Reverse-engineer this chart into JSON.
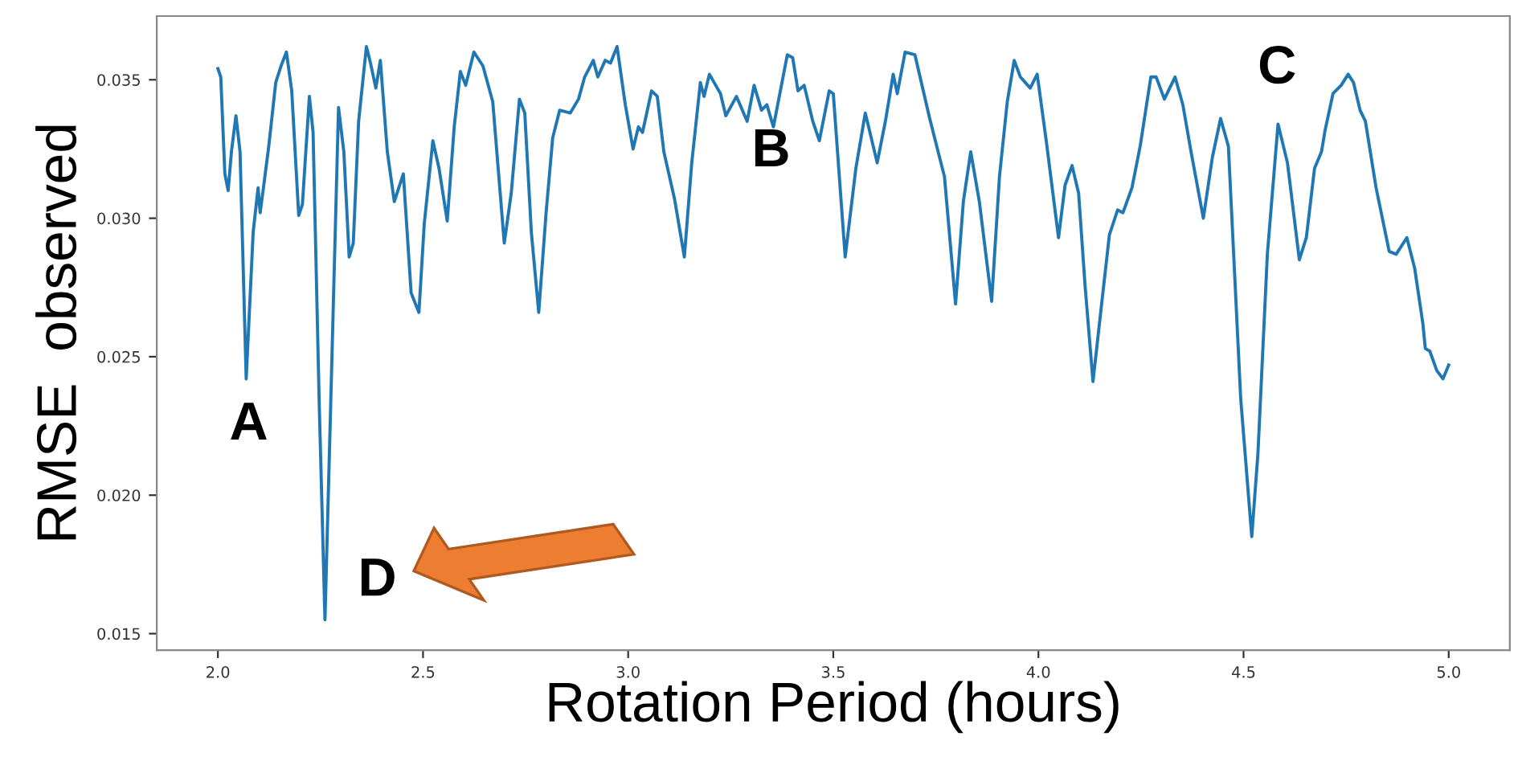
{
  "chart_data": {
    "type": "line",
    "xlabel": "Rotation Period (hours)",
    "ylabel": "RMSE  observed",
    "xlim": [
      1.851,
      5.149
    ],
    "ylim": [
      0.0144,
      0.0373
    ],
    "xticks": [
      {
        "value": 2.0,
        "label": "2.0"
      },
      {
        "value": 2.5,
        "label": "2.5"
      },
      {
        "value": 3.0,
        "label": "3.0"
      },
      {
        "value": 3.5,
        "label": "3.5"
      },
      {
        "value": 4.0,
        "label": "4.0"
      },
      {
        "value": 4.5,
        "label": "4.5"
      },
      {
        "value": 5.0,
        "label": "5.0"
      }
    ],
    "yticks": [
      {
        "value": 0.015,
        "label": "0.015"
      },
      {
        "value": 0.02,
        "label": "0.020"
      },
      {
        "value": 0.025,
        "label": "0.025"
      },
      {
        "value": 0.03,
        "label": "0.030"
      },
      {
        "value": 0.035,
        "label": "0.035"
      }
    ],
    "grid": false,
    "legend": false,
    "marker": "none",
    "line_style": "solid",
    "annotations": [
      "A",
      "B",
      "C",
      "D"
    ],
    "series": [
      {
        "color": "#1f77b4",
        "x": [
          2.0,
          2.007,
          2.017,
          2.025,
          2.033,
          2.044,
          2.054,
          2.069,
          2.086,
          2.098,
          2.103,
          2.111,
          2.124,
          2.141,
          2.154,
          2.167,
          2.18,
          2.197,
          2.206,
          2.223,
          2.232,
          2.247,
          2.261,
          2.275,
          2.294,
          2.307,
          2.32,
          2.33,
          2.343,
          2.362,
          2.372,
          2.385,
          2.396,
          2.413,
          2.43,
          2.452,
          2.471,
          2.49,
          2.503,
          2.524,
          2.539,
          2.559,
          2.576,
          2.591,
          2.604,
          2.624,
          2.646,
          2.67,
          2.698,
          2.715,
          2.735,
          2.748,
          2.764,
          2.782,
          2.8,
          2.816,
          2.833,
          2.859,
          2.879,
          2.894,
          2.915,
          2.926,
          2.944,
          2.957,
          2.973,
          2.993,
          3.012,
          3.025,
          3.035,
          3.057,
          3.071,
          3.087,
          3.113,
          3.137,
          3.155,
          3.176,
          3.185,
          3.198,
          3.225,
          3.238,
          3.264,
          3.29,
          3.307,
          3.325,
          3.338,
          3.354,
          3.388,
          3.401,
          3.414,
          3.429,
          3.45,
          3.466,
          3.49,
          3.5,
          3.529,
          3.555,
          3.578,
          3.607,
          3.627,
          3.646,
          3.656,
          3.675,
          3.699,
          3.735,
          3.771,
          3.798,
          3.817,
          3.835,
          3.856,
          3.886,
          3.905,
          3.924,
          3.941,
          3.956,
          3.98,
          3.997,
          4.019,
          4.049,
          4.065,
          4.082,
          4.098,
          4.114,
          4.133,
          4.154,
          4.173,
          4.193,
          4.206,
          4.228,
          4.248,
          4.274,
          4.287,
          4.307,
          4.333,
          4.352,
          4.372,
          4.402,
          4.424,
          4.444,
          4.463,
          4.493,
          4.52,
          4.535,
          4.558,
          4.584,
          4.607,
          4.636,
          4.653,
          4.673,
          4.69,
          4.699,
          4.718,
          4.738,
          4.755,
          4.768,
          4.784,
          4.797,
          4.823,
          4.855,
          4.872,
          4.898,
          4.917,
          4.937,
          4.943,
          4.954,
          4.971,
          4.986,
          5.0
        ],
        "values": [
          0.0354,
          0.0351,
          0.0316,
          0.031,
          0.0324,
          0.0337,
          0.0324,
          0.0242,
          0.0295,
          0.0311,
          0.0302,
          0.0311,
          0.0326,
          0.0349,
          0.0355,
          0.036,
          0.0346,
          0.0301,
          0.0305,
          0.0344,
          0.0331,
          0.0233,
          0.0155,
          0.0233,
          0.034,
          0.0324,
          0.0286,
          0.0291,
          0.0335,
          0.0362,
          0.0356,
          0.0347,
          0.0357,
          0.0324,
          0.0306,
          0.0316,
          0.0273,
          0.0266,
          0.0298,
          0.0328,
          0.0318,
          0.0299,
          0.0333,
          0.0353,
          0.0348,
          0.036,
          0.0355,
          0.0342,
          0.0291,
          0.0309,
          0.0343,
          0.0338,
          0.0295,
          0.0266,
          0.0302,
          0.0329,
          0.0339,
          0.0338,
          0.0343,
          0.0351,
          0.0357,
          0.0351,
          0.0357,
          0.0356,
          0.0362,
          0.0341,
          0.0325,
          0.0333,
          0.0331,
          0.0346,
          0.0344,
          0.0324,
          0.0307,
          0.0286,
          0.032,
          0.0349,
          0.0344,
          0.0352,
          0.0345,
          0.0337,
          0.0344,
          0.0335,
          0.0348,
          0.0339,
          0.0341,
          0.0333,
          0.0359,
          0.0358,
          0.0346,
          0.0348,
          0.0335,
          0.0328,
          0.0346,
          0.0345,
          0.0286,
          0.0318,
          0.0338,
          0.032,
          0.0335,
          0.0352,
          0.0345,
          0.036,
          0.0359,
          0.0336,
          0.0315,
          0.0269,
          0.0306,
          0.0324,
          0.0306,
          0.027,
          0.0315,
          0.0342,
          0.0357,
          0.0351,
          0.0347,
          0.0352,
          0.0328,
          0.0293,
          0.0312,
          0.0319,
          0.0309,
          0.0275,
          0.0241,
          0.0269,
          0.0294,
          0.0303,
          0.0302,
          0.0311,
          0.0326,
          0.0351,
          0.0351,
          0.0343,
          0.0351,
          0.0341,
          0.0324,
          0.03,
          0.0322,
          0.0336,
          0.0326,
          0.0235,
          0.0185,
          0.0215,
          0.0287,
          0.0334,
          0.032,
          0.0285,
          0.0293,
          0.0318,
          0.0324,
          0.0332,
          0.0345,
          0.0348,
          0.0352,
          0.0349,
          0.0339,
          0.0335,
          0.0311,
          0.0288,
          0.0287,
          0.0293,
          0.0282,
          0.0262,
          0.0253,
          0.0252,
          0.0245,
          0.0242,
          0.0247
        ]
      }
    ]
  }
}
